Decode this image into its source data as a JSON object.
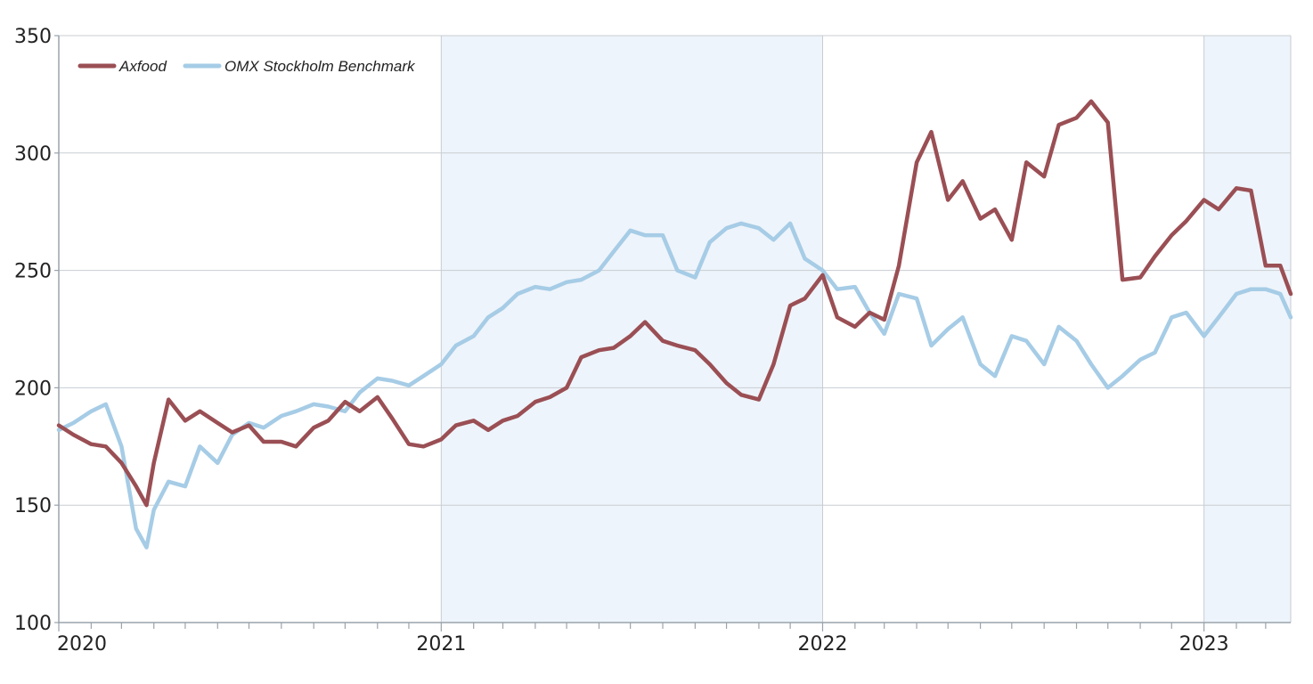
{
  "chart_data": {
    "type": "line",
    "title": "",
    "xlabel": "",
    "ylabel": "",
    "ylim": [
      100,
      350
    ],
    "yticks": [
      100,
      150,
      200,
      250,
      300,
      350
    ],
    "ytick_labels": [
      "100",
      "150",
      "200",
      "250",
      "300",
      "350"
    ],
    "xlim": [
      "2020-01-01",
      "2023-03-25"
    ],
    "xtick_labels": [
      "2020",
      "2021",
      "2022",
      "2023"
    ],
    "xticks": [
      "2020-01-01",
      "2021-01-01",
      "2022-01-01",
      "2023-01-01"
    ],
    "shaded_years": [
      "2021",
      "2023"
    ],
    "grid": "horizontal and yearly vertical",
    "legend": "top-left",
    "colors": {
      "Axfood": "#9a4f54",
      "OMX Stockholm Benchmark": "#a6cce6",
      "shade": "#eef4fb",
      "grid": "#c8cdd2",
      "axis": "#9aa3ab"
    },
    "series": [
      {
        "name": "Axfood",
        "x": [
          "2020-01-01",
          "2020-01-15",
          "2020-02-01",
          "2020-02-15",
          "2020-03-01",
          "2020-03-15",
          "2020-03-25",
          "2020-04-01",
          "2020-04-15",
          "2020-05-01",
          "2020-05-15",
          "2020-06-01",
          "2020-06-15",
          "2020-07-01",
          "2020-07-15",
          "2020-08-01",
          "2020-08-15",
          "2020-09-01",
          "2020-09-15",
          "2020-10-01",
          "2020-10-15",
          "2020-11-01",
          "2020-11-15",
          "2020-12-01",
          "2020-12-15",
          "2021-01-01",
          "2021-01-15",
          "2021-02-01",
          "2021-02-15",
          "2021-03-01",
          "2021-03-15",
          "2021-04-01",
          "2021-04-15",
          "2021-05-01",
          "2021-05-15",
          "2021-06-01",
          "2021-06-15",
          "2021-07-01",
          "2021-07-15",
          "2021-08-01",
          "2021-08-15",
          "2021-09-01",
          "2021-09-15",
          "2021-10-01",
          "2021-10-15",
          "2021-11-01",
          "2021-11-15",
          "2021-12-01",
          "2021-12-15",
          "2022-01-01",
          "2022-01-15",
          "2022-02-01",
          "2022-02-15",
          "2022-03-01",
          "2022-03-15",
          "2022-04-01",
          "2022-04-15",
          "2022-05-01",
          "2022-05-15",
          "2022-06-01",
          "2022-06-15",
          "2022-07-01",
          "2022-07-15",
          "2022-08-01",
          "2022-08-15",
          "2022-09-01",
          "2022-09-15",
          "2022-10-01",
          "2022-10-15",
          "2022-11-01",
          "2022-11-15",
          "2022-12-01",
          "2022-12-15",
          "2023-01-01",
          "2023-01-15",
          "2023-02-01",
          "2023-02-15",
          "2023-03-01",
          "2023-03-15",
          "2023-03-25"
        ],
        "values": [
          184,
          180,
          176,
          175,
          168,
          158,
          150,
          168,
          195,
          186,
          190,
          185,
          181,
          184,
          177,
          177,
          175,
          183,
          186,
          194,
          190,
          196,
          187,
          176,
          175,
          178,
          184,
          186,
          182,
          186,
          188,
          194,
          196,
          200,
          213,
          216,
          217,
          222,
          228,
          220,
          218,
          216,
          210,
          202,
          197,
          195,
          210,
          235,
          238,
          248,
          230,
          226,
          232,
          229,
          252,
          296,
          309,
          280,
          288,
          272,
          276,
          263,
          296,
          290,
          312,
          315,
          322,
          313,
          246,
          247,
          256,
          265,
          271,
          280,
          276,
          285,
          284,
          252,
          252,
          240
        ]
      },
      {
        "name": "OMX Stockholm Benchmark",
        "x": [
          "2020-01-01",
          "2020-01-15",
          "2020-02-01",
          "2020-02-15",
          "2020-03-01",
          "2020-03-15",
          "2020-03-25",
          "2020-04-01",
          "2020-04-15",
          "2020-05-01",
          "2020-05-15",
          "2020-06-01",
          "2020-06-15",
          "2020-07-01",
          "2020-07-15",
          "2020-08-01",
          "2020-08-15",
          "2020-09-01",
          "2020-09-15",
          "2020-10-01",
          "2020-10-15",
          "2020-11-01",
          "2020-11-15",
          "2020-12-01",
          "2020-12-15",
          "2021-01-01",
          "2021-01-15",
          "2021-02-01",
          "2021-02-15",
          "2021-03-01",
          "2021-03-15",
          "2021-04-01",
          "2021-04-15",
          "2021-05-01",
          "2021-05-15",
          "2021-06-01",
          "2021-06-15",
          "2021-07-01",
          "2021-07-15",
          "2021-08-01",
          "2021-08-15",
          "2021-09-01",
          "2021-09-15",
          "2021-10-01",
          "2021-10-15",
          "2021-11-01",
          "2021-11-15",
          "2021-12-01",
          "2021-12-15",
          "2022-01-01",
          "2022-01-15",
          "2022-02-01",
          "2022-02-15",
          "2022-03-01",
          "2022-03-15",
          "2022-04-01",
          "2022-04-15",
          "2022-05-01",
          "2022-05-15",
          "2022-06-01",
          "2022-06-15",
          "2022-07-01",
          "2022-07-15",
          "2022-08-01",
          "2022-08-15",
          "2022-09-01",
          "2022-09-15",
          "2022-10-01",
          "2022-10-15",
          "2022-11-01",
          "2022-11-15",
          "2022-12-01",
          "2022-12-15",
          "2023-01-01",
          "2023-01-15",
          "2023-02-01",
          "2023-02-15",
          "2023-03-01",
          "2023-03-15",
          "2023-03-25"
        ],
        "values": [
          182,
          185,
          190,
          193,
          175,
          140,
          132,
          148,
          160,
          158,
          175,
          168,
          180,
          185,
          183,
          188,
          190,
          193,
          192,
          190,
          198,
          204,
          203,
          201,
          205,
          210,
          218,
          222,
          230,
          234,
          240,
          243,
          242,
          245,
          246,
          250,
          258,
          267,
          265,
          265,
          250,
          247,
          262,
          268,
          270,
          268,
          263,
          270,
          255,
          250,
          242,
          243,
          232,
          223,
          240,
          238,
          218,
          225,
          230,
          210,
          205,
          222,
          220,
          210,
          226,
          220,
          210,
          200,
          205,
          212,
          215,
          230,
          232,
          222,
          230,
          240,
          242,
          242,
          240,
          230
        ]
      }
    ]
  }
}
